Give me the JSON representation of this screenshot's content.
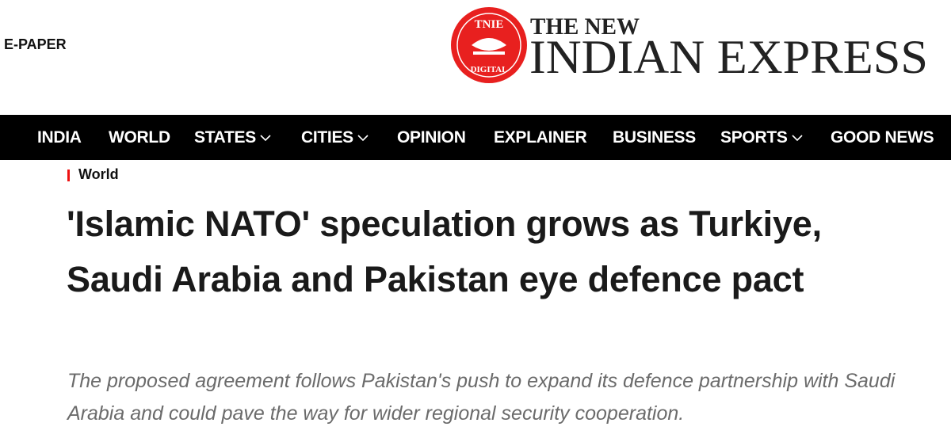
{
  "header": {
    "epaper": "E-PAPER",
    "logo": {
      "badge_top": "TNIE",
      "badge_bottom": "DIGITAL",
      "line1": "THE NEW",
      "line2": "INDIAN EXPRESS"
    }
  },
  "nav": {
    "items": [
      "INDIA",
      "WORLD",
      "STATES",
      "CITIES",
      "OPINION",
      "EXPLAINER",
      "BUSINESS",
      "SPORTS",
      "GOOD NEWS"
    ]
  },
  "article": {
    "section": "World",
    "headline": "'Islamic NATO' speculation grows as Turkiye, Saudi Arabia and Pakistan eye defence pact",
    "summary": "The proposed agreement follows Pakistan's push to expand its defence partnership with Saudi Arabia and could pave the way for wider regional security cooperation."
  }
}
